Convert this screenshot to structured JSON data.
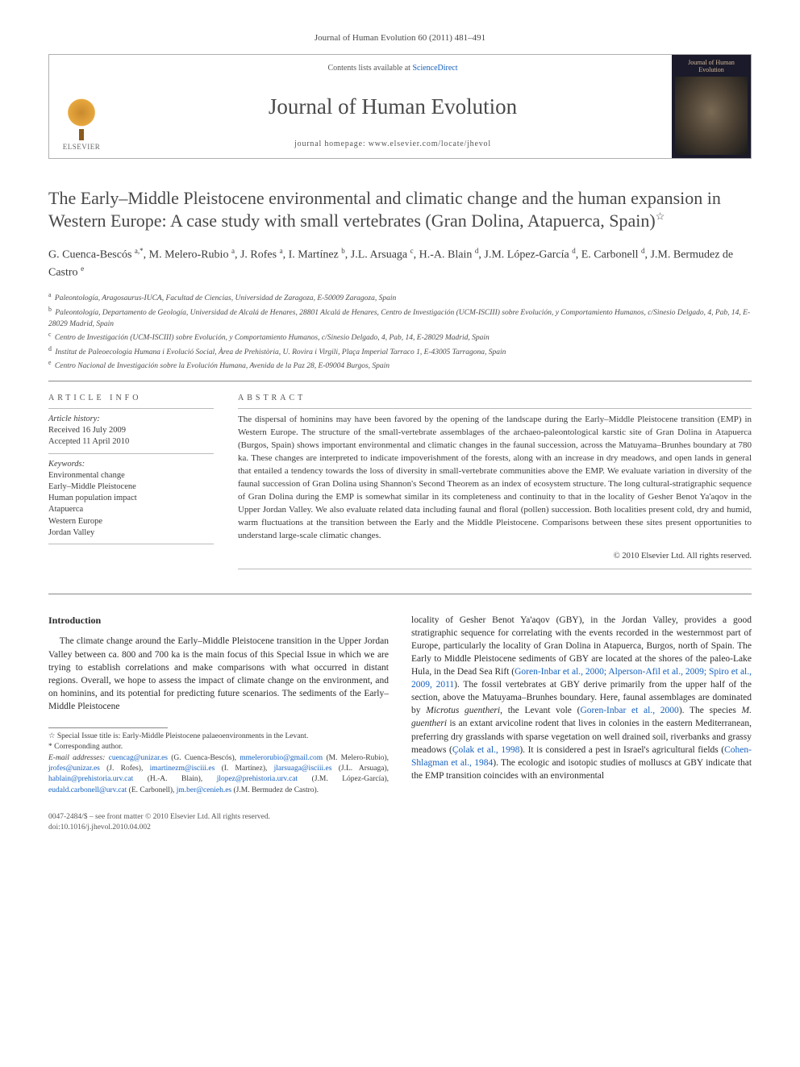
{
  "journal_header": "Journal of Human Evolution 60 (2011) 481–491",
  "masthead": {
    "contents_prefix": "Contents lists available at ",
    "contents_link": "ScienceDirect",
    "journal_title": "Journal of Human Evolution",
    "homepage_prefix": "journal homepage: ",
    "homepage_url": "www.elsevier.com/locate/jhevol",
    "publisher": "ELSEVIER",
    "cover_title": "Journal of Human Evolution"
  },
  "article": {
    "title": "The Early–Middle Pleistocene environmental and climatic change and the human expansion in Western Europe: A case study with small vertebrates (Gran Dolina, Atapuerca, Spain)",
    "star": "☆"
  },
  "authors_html": "G. Cuenca-Bescós <sup>a,*</sup>, M. Melero-Rubio <sup>a</sup>, J. Rofes <sup>a</sup>, I. Martínez <sup>b</sup>, J.L. Arsuaga <sup>c</sup>, H.-A. Blain <sup>d</sup>, J.M. López-García <sup>d</sup>, E. Carbonell <sup>d</sup>, J.M. Bermudez de Castro <sup>e</sup>",
  "affiliations": [
    {
      "sup": "a",
      "text": "Paleontología, Aragosaurus-IUCA, Facultad de Ciencias, Universidad de Zaragoza, E-50009 Zaragoza, Spain"
    },
    {
      "sup": "b",
      "text": "Paleontología, Departamento de Geología, Universidad de Alcalá de Henares, 28801 Alcalá de Henares, Centro de Investigación (UCM-ISCIII) sobre Evolución, y Comportamiento Humanos, c/Sinesio Delgado, 4, Pab, 14, E-28029 Madrid, Spain"
    },
    {
      "sup": "c",
      "text": "Centro de Investigación (UCM-ISCIII) sobre Evolución, y Comportamiento Humanos, c/Sinesio Delgado, 4, Pab, 14, E-28029 Madrid, Spain"
    },
    {
      "sup": "d",
      "text": "Institut de Paleoecologia Humana i Evolució Social, Àrea de Prehistòria, U. Rovira i Virgili, Plaça Imperial Tarraco 1, E-43005 Tarragona, Spain"
    },
    {
      "sup": "e",
      "text": "Centro Nacional de Investigación sobre la Evolución Humana, Avenida de la Paz 28, E-09004 Burgos, Spain"
    }
  ],
  "article_info": {
    "heading": "ARTICLE INFO",
    "history_label": "Article history:",
    "received": "Received 16 July 2009",
    "accepted": "Accepted 11 April 2010",
    "keywords_label": "Keywords:",
    "keywords": [
      "Environmental change",
      "Early–Middle Pleistocene",
      "Human population impact",
      "Atapuerca",
      "Western Europe",
      "Jordan Valley"
    ]
  },
  "abstract": {
    "heading": "ABSTRACT",
    "text": "The dispersal of hominins may have been favored by the opening of the landscape during the Early–Middle Pleistocene transition (EMP) in Western Europe. The structure of the small-vertebrate assemblages of the archaeo-paleontological karstic site of Gran Dolina in Atapuerca (Burgos, Spain) shows important environmental and climatic changes in the faunal succession, across the Matuyama–Brunhes boundary at 780 ka. These changes are interpreted to indicate impoverishment of the forests, along with an increase in dry meadows, and open lands in general that entailed a tendency towards the loss of diversity in small-vertebrate communities above the EMP. We evaluate variation in diversity of the faunal succession of Gran Dolina using Shannon's Second Theorem as an index of ecosystem structure. The long cultural-stratigraphic sequence of Gran Dolina during the EMP is somewhat similar in its completeness and continuity to that in the locality of Gesher Benot Ya'aqov in the Upper Jordan Valley. We also evaluate related data including faunal and floral (pollen) succession. Both localities present cold, dry and humid, warm fluctuations at the transition between the Early and the Middle Pleistocene. Comparisons between these sites present opportunities to understand large-scale climatic changes.",
    "copyright": "© 2010 Elsevier Ltd. All rights reserved."
  },
  "body": {
    "section_head": "Introduction",
    "col1": "The climate change around the Early–Middle Pleistocene transition in the Upper Jordan Valley between ca. 800 and 700 ka is the main focus of this Special Issue in which we are trying to establish correlations and make comparisons with what occurred in distant regions. Overall, we hope to assess the impact of climate change on the environment, and on hominins, and its potential for predicting future scenarios. The sediments of the Early–Middle Pleistocene",
    "col2_pre": "locality of Gesher Benot Ya'aqov (GBY), in the Jordan Valley, provides a good stratigraphic sequence for correlating with the events recorded in the westernmost part of Europe, particularly the locality of Gran Dolina in Atapuerca, Burgos, north of Spain. The Early to Middle Pleistocene sediments of GBY are located at the shores of the paleo-Lake Hula, in the Dead Sea Rift (",
    "cite1": "Goren-Inbar et al., 2000; Alperson-Afil et al., 2009; Spiro et al., 2009, 2011",
    "col2_mid1": "). The fossil vertebrates at GBY derive primarily from the upper half of the section, above the Matuyama–Brunhes boundary. Here, faunal assemblages are dominated by ",
    "ital1": "Microtus guentheri",
    "col2_mid2": ", the Levant vole (",
    "cite2": "Goren-Inbar et al., 2000",
    "col2_mid3": "). The species ",
    "ital2": "M. guentheri",
    "col2_mid4": " is an extant arvicoline rodent that lives in colonies in the eastern Mediterranean, preferring dry grasslands with sparse vegetation on well drained soil, riverbanks and grassy meadows (",
    "cite3": "Çolak et al., 1998",
    "col2_mid5": "). It is considered a pest in Israel's agricultural fields (",
    "cite4": "Cohen-Shlagman et al., 1984",
    "col2_end": "). The ecologic and isotopic studies of molluscs at GBY indicate that the EMP transition coincides with an environmental"
  },
  "footnotes": {
    "star": "☆ Special Issue title is: Early-Middle Pleistocene palaeoenvironments in the Levant.",
    "corr": "* Corresponding author.",
    "emails_label": "E-mail addresses:",
    "emails": [
      {
        "addr": "cuencag@unizar.es",
        "who": "(G. Cuenca-Bescós),"
      },
      {
        "addr": "mmelerorubio@gmail.com",
        "who": "(M. Melero-Rubio),"
      },
      {
        "addr": "jrofes@unizar.es",
        "who": "(J. Rofes),"
      },
      {
        "addr": "imartinezm@isciii.es",
        "who": "(I. Martínez),"
      },
      {
        "addr": "jlarsuaga@isciii.es",
        "who": "(J.L. Arsuaga),"
      },
      {
        "addr": "hablain@prehistoria.urv.cat",
        "who": "(H.-A. Blain),"
      },
      {
        "addr": "jlopez@prehistoria.urv.cat",
        "who": "(J.M. López-García),"
      },
      {
        "addr": "eudald.carbonell@urv.cat",
        "who": "(E. Carbonell),"
      },
      {
        "addr": "jm.ber@cenieh.es",
        "who": "(J.M. Bermudez de Castro)."
      }
    ]
  },
  "footer": {
    "line1": "0047-2484/$ – see front matter © 2010 Elsevier Ltd. All rights reserved.",
    "line2": "doi:10.1016/j.jhevol.2010.04.002"
  }
}
